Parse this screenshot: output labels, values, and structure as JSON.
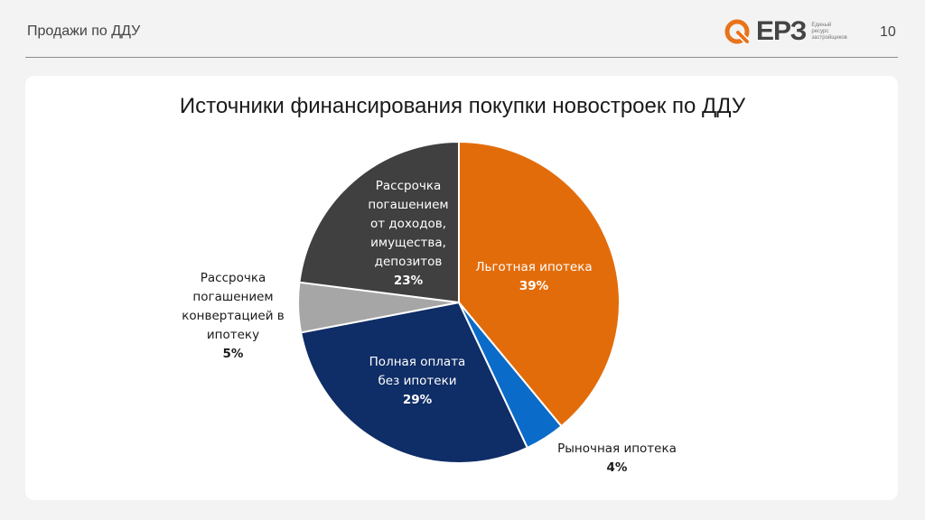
{
  "header": {
    "title": "Продажи по ДДУ",
    "page_number": "10"
  },
  "logo": {
    "name": "ЕРЗ",
    "tagline": [
      "Единый",
      "ресурс",
      "застройщиков"
    ],
    "accent": "#e8731a"
  },
  "chart_data": {
    "type": "pie",
    "title": "Источники финансирования покупки новостроек по ДДУ",
    "slices": [
      {
        "label": "Льготная ипотека",
        "value": 39,
        "value_label": "39%",
        "color": "#e36c0a"
      },
      {
        "label": "Рыночная ипотека",
        "value": 4,
        "value_label": "4%",
        "color": "#0b6bc8"
      },
      {
        "label": "Полная оплата без ипотеки",
        "value": 29,
        "value_label": "29%",
        "color": "#0f2d66"
      },
      {
        "label": "Рассрочка погашением конвертацией в ипотеку",
        "value": 5,
        "value_label": "5%",
        "color": "#a6a6a6"
      },
      {
        "label": "Рассрочка погашением от доходов, имущества, депозитов",
        "value": 23,
        "value_label": "23%",
        "color": "#404040"
      }
    ]
  }
}
